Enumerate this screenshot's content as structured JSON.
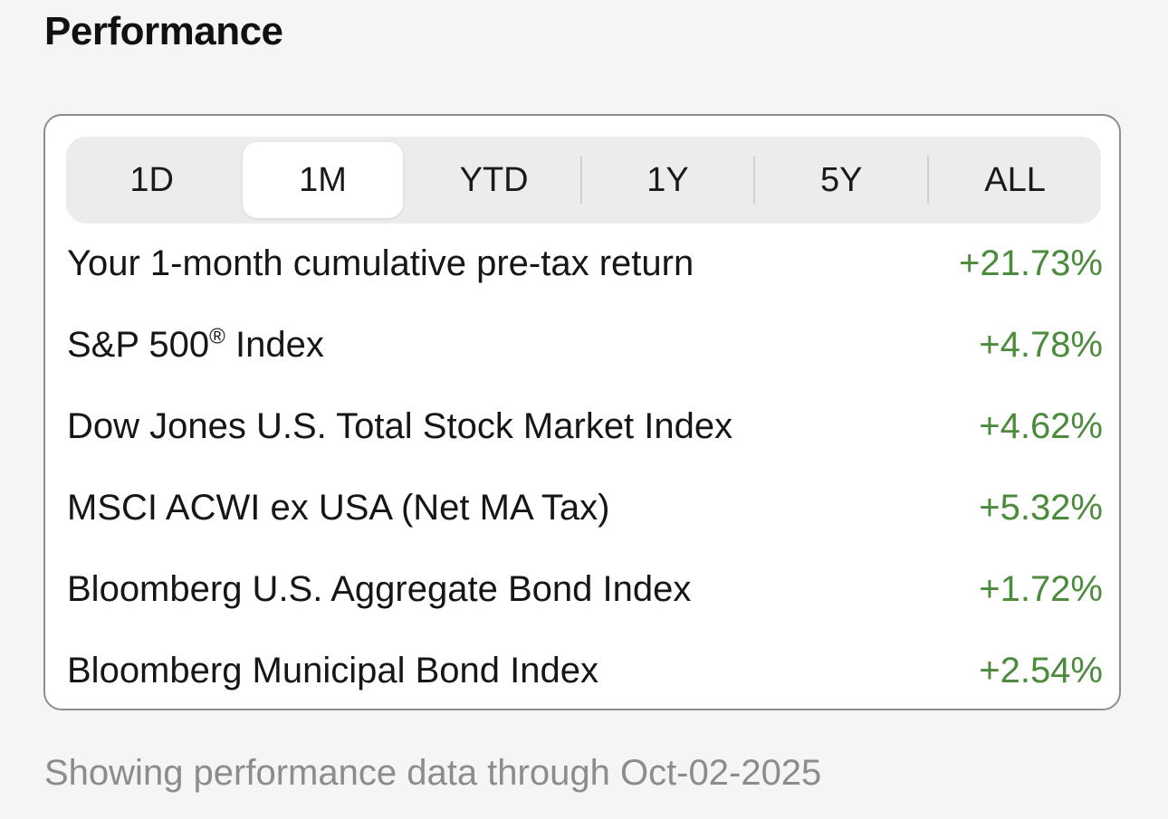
{
  "section": {
    "title": "Performance"
  },
  "periods": {
    "options": [
      "1D",
      "1M",
      "YTD",
      "1Y",
      "5Y",
      "ALL"
    ],
    "selected": "1M"
  },
  "rows": [
    {
      "label": "Your 1-month cumulative pre-tax return",
      "value": "+21.73%"
    },
    {
      "label": "S&P 500",
      "label_suffix": "®",
      "label_tail": " Index",
      "value": "+4.78%"
    },
    {
      "label": "Dow Jones U.S. Total Stock Market Index",
      "value": "+4.62%"
    },
    {
      "label": "MSCI ACWI ex USA (Net MA Tax)",
      "value": "+5.32%"
    },
    {
      "label": "Bloomberg U.S. Aggregate Bond Index",
      "value": "+1.72%"
    },
    {
      "label": "Bloomberg Municipal Bond Index",
      "value": "+2.54%"
    }
  ],
  "footnote": "Showing performance data through Oct-02-2025",
  "colors": {
    "positive": "#4b8b3b",
    "muted_text": "#8c8c8c",
    "card_border": "#8e8e8e",
    "segment_bg": "#ececec"
  }
}
